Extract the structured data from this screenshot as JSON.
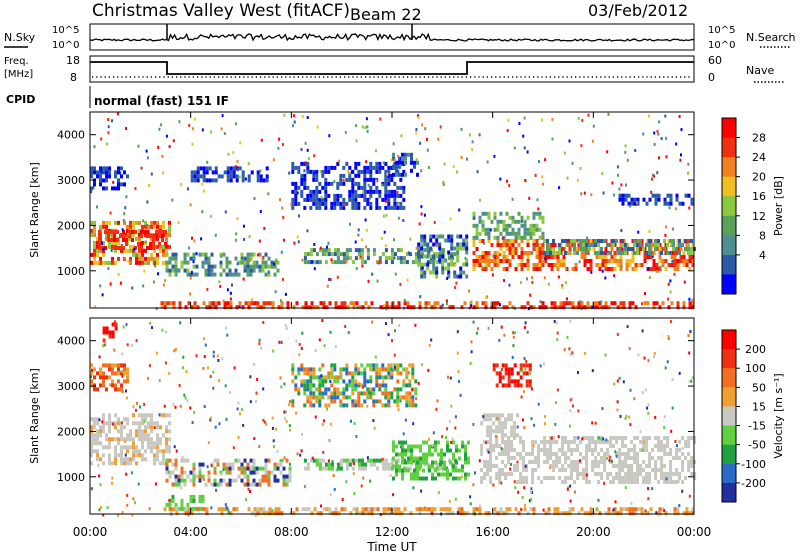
{
  "header": {
    "site": "Christmas Valley West (fitACF)",
    "beam": "Beam 22",
    "date": "03/Feb/2012"
  },
  "panels": {
    "nsky_label": "N.Sky",
    "nsearch_label": "N.Search",
    "nsky_ticks": [
      "10^5",
      "10^0"
    ],
    "freq_label": [
      "Freq.",
      "[MHz]"
    ],
    "freq_ticks": [
      "18",
      "8"
    ],
    "nave_label": "Nave",
    "nave_ticks": [
      "60",
      "0"
    ],
    "cpid_label": "CPID",
    "cpid_text": "normal (fast) 151 IF"
  },
  "chart_data": [
    {
      "type": "heatmap",
      "title": "",
      "ylabel": "Slant Range [km]",
      "ylim": [
        180,
        4500
      ],
      "yticks": [
        "4000",
        "3000",
        "2000",
        "1000"
      ],
      "xlim": [
        "00:00",
        "24:00"
      ],
      "xticks": [
        "00:00",
        "04:00",
        "08:00",
        "12:00",
        "16:00",
        "20:00",
        "00:00"
      ],
      "colorbar": {
        "label": "Power [dB]",
        "ticks": [
          "28",
          "24",
          "20",
          "16",
          "12",
          "8",
          "4"
        ],
        "colors": [
          "#0000ff",
          "#2a5aa8",
          "#4f8f8f",
          "#5aa05a",
          "#8ac840",
          "#f0c020",
          "#f08020",
          "#f03010",
          "#ff0000"
        ]
      }
    },
    {
      "type": "heatmap",
      "title": "",
      "ylabel": "Slant Range [km]",
      "ylim": [
        180,
        4500
      ],
      "yticks": [
        "4000",
        "3000",
        "2000",
        "1000"
      ],
      "xlabel": "Time UT",
      "xlim": [
        "00:00",
        "24:00"
      ],
      "xticks": [
        "00:00",
        "04:00",
        "08:00",
        "12:00",
        "16:00",
        "20:00",
        "00:00"
      ],
      "colorbar": {
        "label": "Velocity [m s⁻¹]",
        "ticks": [
          "200",
          "100",
          "50",
          "15",
          "-15",
          "-50",
          "-100",
          "-200"
        ],
        "colors": [
          "#2030a0",
          "#2a6ac8",
          "#20a040",
          "#60d040",
          "#c8c8c0",
          "#f0a030",
          "#f07020",
          "#f03010",
          "#ff0000"
        ]
      }
    }
  ]
}
